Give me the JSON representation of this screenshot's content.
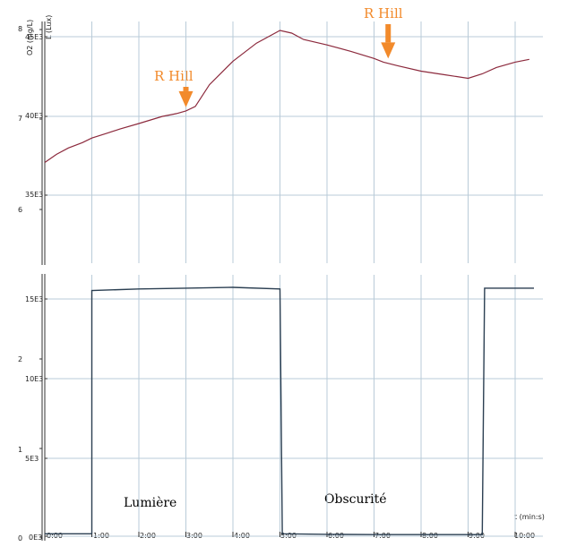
{
  "chart_data": [
    {
      "type": "line",
      "panel": "top",
      "ylabel": "O2 (mg/L)",
      "ylabel_color": "#a0203a",
      "ylabel2": "L (Lux)",
      "y_ticks": [
        "8",
        "7",
        "6"
      ],
      "y2_ticks": [
        "45E3",
        "40E3",
        "35E3"
      ],
      "series": [
        {
          "color": "#8c2a3d",
          "x": [
            0.0,
            0.25,
            0.5,
            0.8,
            1.0,
            1.3,
            1.6,
            2.0,
            2.5,
            2.8,
            3.0,
            3.2,
            3.5,
            4.0,
            4.5,
            5.0,
            5.25,
            5.5,
            6.0,
            6.5,
            7.0,
            7.2,
            7.5,
            8.0,
            8.5,
            9.0,
            9.3,
            9.6,
            10.0,
            10.3
          ],
          "y": [
            6.52,
            6.61,
            6.68,
            6.74,
            6.79,
            6.84,
            6.89,
            6.95,
            7.03,
            7.06,
            7.09,
            7.14,
            7.38,
            7.64,
            7.84,
            7.98,
            7.95,
            7.88,
            7.82,
            7.75,
            7.67,
            7.63,
            7.59,
            7.53,
            7.49,
            7.45,
            7.5,
            7.57,
            7.63,
            7.66
          ]
        }
      ],
      "annotations": [
        {
          "text": "R Hill",
          "x": 3.0,
          "y": 7.09
        },
        {
          "text": "R Hill",
          "x": 7.3,
          "y": 7.63
        }
      ]
    },
    {
      "type": "line",
      "panel": "bottom",
      "ylabel": "",
      "y_ticks": [
        "2",
        "1",
        "0"
      ],
      "y2_ticks": [
        "15E3",
        "10E3",
        "5E3",
        "0E3"
      ],
      "xlabel": "t (min:s)",
      "x_ticks": [
        "0:00",
        "1:00",
        "2:00",
        "3:00",
        "4:00",
        "5:00",
        "6:00",
        "7:00",
        "8:00",
        "9:00",
        "10:00"
      ],
      "series": [
        {
          "color": "#2b3f52",
          "x": [
            0.0,
            1.0,
            1.0,
            2.0,
            3.0,
            4.0,
            5.0,
            5.05,
            6.0,
            7.0,
            8.0,
            9.0,
            9.3,
            9.35,
            10.0,
            10.4
          ],
          "y": [
            150,
            150,
            15400,
            15500,
            15550,
            15600,
            15500,
            150,
            120,
            100,
            100,
            100,
            100,
            15550,
            15550,
            15550
          ]
        }
      ],
      "annotations": [
        {
          "text": "Lumière",
          "x": 2.0
        },
        {
          "text": "Obscurité",
          "x": 7.0
        }
      ]
    }
  ]
}
